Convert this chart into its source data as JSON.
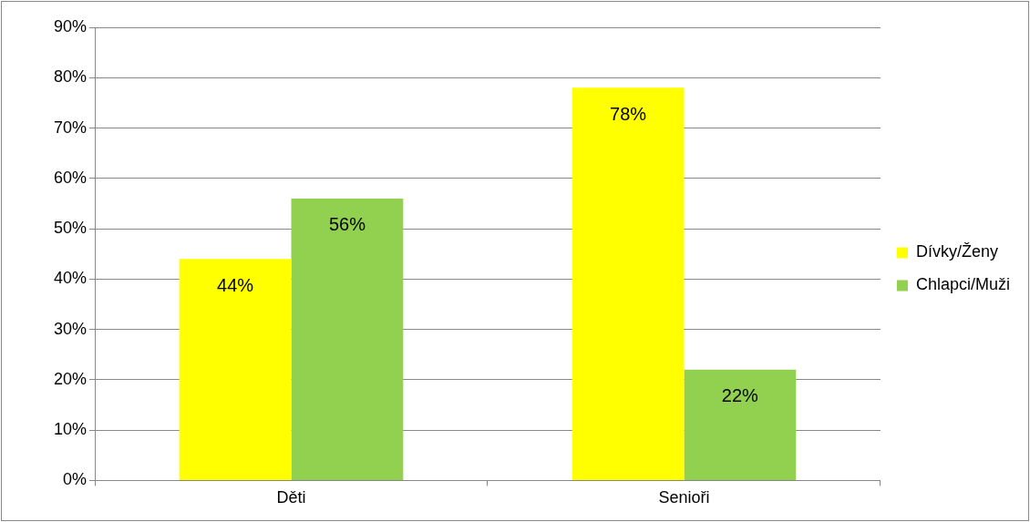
{
  "chart_data": {
    "type": "bar",
    "categories": [
      "Děti",
      "Senioři"
    ],
    "series": [
      {
        "name": "Dívky/Ženy",
        "color": "#ffff00",
        "values": [
          44,
          78
        ],
        "value_labels": [
          "44%",
          "78%"
        ]
      },
      {
        "name": "Chlapci/Muži",
        "color": "#92d050",
        "values": [
          56,
          22
        ],
        "value_labels": [
          "56%",
          "22%"
        ]
      }
    ],
    "ylim": [
      0,
      90
    ],
    "yticks": [
      {
        "value": 0,
        "label": "0%"
      },
      {
        "value": 10,
        "label": "10%"
      },
      {
        "value": 20,
        "label": "20%"
      },
      {
        "value": 30,
        "label": "30%"
      },
      {
        "value": 40,
        "label": "40%"
      },
      {
        "value": 50,
        "label": "50%"
      },
      {
        "value": 60,
        "label": "60%"
      },
      {
        "value": 70,
        "label": "70%"
      },
      {
        "value": 80,
        "label": "80%"
      },
      {
        "value": 90,
        "label": "90%"
      }
    ],
    "grid": "y",
    "legend": "right"
  }
}
